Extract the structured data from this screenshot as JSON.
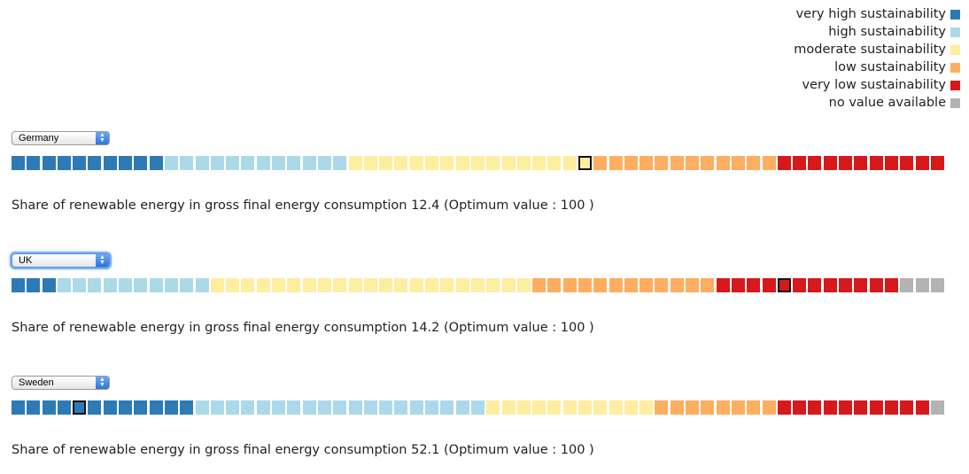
{
  "legend": {
    "items": [
      {
        "label": "very high sustainability",
        "color": "#2c7bb6",
        "key": "vh"
      },
      {
        "label": "high sustainability",
        "color": "#abd9e9",
        "key": "h"
      },
      {
        "label": "moderate sustainability",
        "color": "#ffeda0",
        "key": "m"
      },
      {
        "label": "low sustainability",
        "color": "#fdae61",
        "key": "l"
      },
      {
        "label": "very low sustainability",
        "color": "#d7191c",
        "key": "vl"
      },
      {
        "label": "no value available",
        "color": "#b3b3b3",
        "key": "na"
      }
    ]
  },
  "panels": [
    {
      "country": "Germany",
      "focused": false,
      "segments": [
        {
          "class": "vh",
          "count": 10
        },
        {
          "class": "h",
          "count": 12
        },
        {
          "class": "m",
          "count": 16
        },
        {
          "class": "l",
          "count": 12
        },
        {
          "class": "vl",
          "count": 11
        }
      ],
      "selected_index": 37,
      "indicator_text": "Share of renewable energy in gross final energy consumption",
      "value": "12.4",
      "optimum_text": "(Optimum value : 100 )"
    },
    {
      "country": "UK",
      "focused": true,
      "segments": [
        {
          "class": "vh",
          "count": 3
        },
        {
          "class": "h",
          "count": 10
        },
        {
          "class": "m",
          "count": 21
        },
        {
          "class": "l",
          "count": 12
        },
        {
          "class": "vl",
          "count": 12
        },
        {
          "class": "na",
          "count": 3
        }
      ],
      "selected_index": 50,
      "indicator_text": "Share of renewable energy in gross final energy consumption",
      "value": "14.2",
      "optimum_text": "(Optimum value : 100 )"
    },
    {
      "country": "Sweden",
      "focused": false,
      "segments": [
        {
          "class": "vh",
          "count": 12
        },
        {
          "class": "h",
          "count": 19
        },
        {
          "class": "m",
          "count": 11
        },
        {
          "class": "l",
          "count": 8
        },
        {
          "class": "vl",
          "count": 10
        },
        {
          "class": "na",
          "count": 1
        }
      ],
      "selected_index": 4,
      "indicator_text": "Share of renewable energy in gross final energy consumption",
      "value": "52.1",
      "optimum_text": "(Optimum value : 100 )"
    }
  ]
}
